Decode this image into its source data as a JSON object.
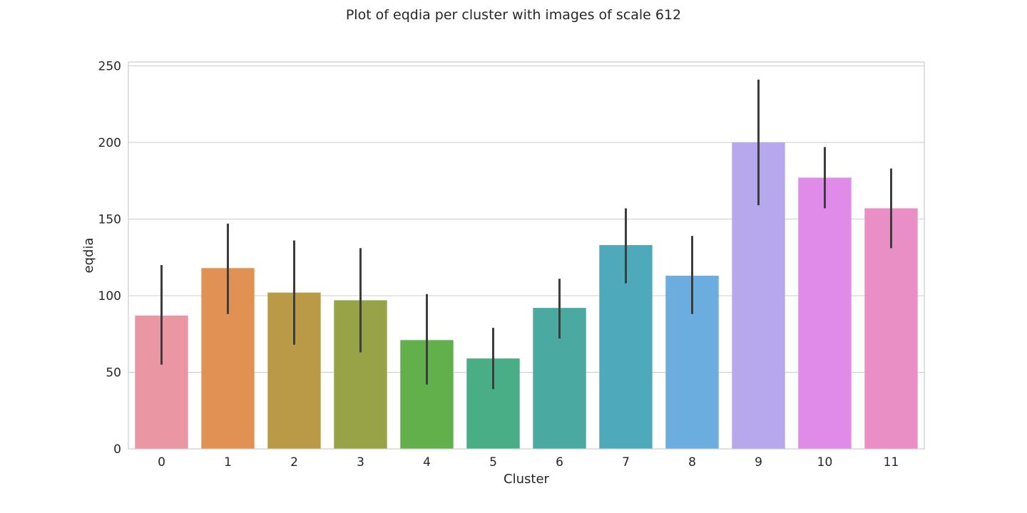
{
  "chart_data": {
    "type": "bar",
    "title": "Plot of eqdia per cluster with images of scale 612",
    "xlabel": "Cluster",
    "ylabel": "eqdia",
    "categories": [
      "0",
      "1",
      "2",
      "3",
      "4",
      "5",
      "6",
      "7",
      "8",
      "9",
      "10",
      "11"
    ],
    "values": [
      87,
      118,
      102,
      97,
      71,
      59,
      92,
      133,
      113,
      200,
      177,
      157
    ],
    "error_low": [
      55,
      88,
      68,
      63,
      42,
      39,
      72,
      108,
      88,
      159,
      157,
      131
    ],
    "error_high": [
      120,
      147,
      136,
      131,
      101,
      79,
      111,
      157,
      139,
      241,
      197,
      183
    ],
    "yticks": [
      0,
      50,
      100,
      150,
      200,
      250
    ],
    "ylim": [
      0,
      252.5
    ],
    "grid": true,
    "colors": [
      "#ea96a3",
      "#e19153",
      "#b89a47",
      "#98a246",
      "#61b04b",
      "#49ae86",
      "#4aaaa1",
      "#4eaabb",
      "#6badde",
      "#b7a7ec",
      "#e08ae9",
      "#e98fc6"
    ],
    "error_color": "#3d3d3d",
    "grid_color": "#cccccc",
    "spine_color": "#cccccc"
  }
}
